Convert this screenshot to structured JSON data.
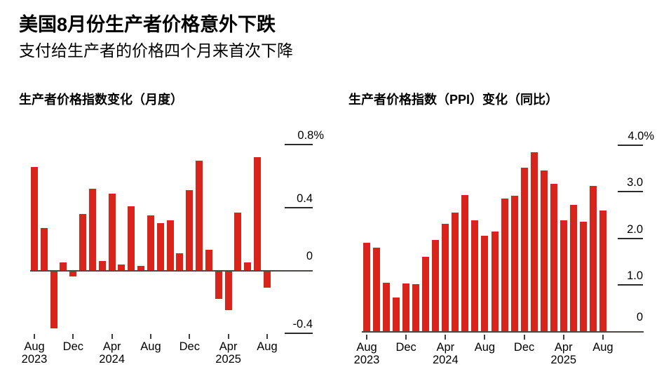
{
  "header": {
    "title": "美国8月份生产者价格意外下跌",
    "subtitle": "支付给生产者的价格四个月来首次下降"
  },
  "colors": {
    "bar_red": "#d9241c",
    "axis_line": "#4d4945",
    "x_tick": "#3f3f3f",
    "grid_tick": "#2b2b2b",
    "text": "#000000",
    "background": "#ffffff"
  },
  "chart_data": [
    {
      "type": "bar",
      "title": "生产者价格指数变化（月度）",
      "ylabel": "",
      "xlabel": "",
      "unit": "percent, month-over-month",
      "grid": false,
      "legend": "none",
      "bar_color": "#d9241c",
      "ylim": [
        -0.45,
        0.85
      ],
      "categories": [
        "Aug 2023",
        "Sep 2023",
        "Oct 2023",
        "Nov 2023",
        "Dec 2023",
        "Jan 2024",
        "Feb 2024",
        "Mar 2024",
        "Apr 2024",
        "May 2024",
        "Jun 2024",
        "Jul 2024",
        "Aug 2024",
        "Sep 2024",
        "Oct 2024",
        "Nov 2024",
        "Dec 2024",
        "Jan 2025",
        "Feb 2025",
        "Mar 2025",
        "Apr 2025",
        "May 2025",
        "Jun 2025",
        "Jul 2025",
        "Aug 2025"
      ],
      "values": [
        0.66,
        0.27,
        -0.37,
        0.05,
        -0.04,
        0.36,
        0.52,
        0.06,
        0.49,
        0.04,
        0.41,
        0.03,
        0.35,
        0.3,
        0.32,
        0.11,
        0.51,
        0.7,
        0.13,
        -0.18,
        -0.25,
        0.37,
        0.05,
        0.72,
        -0.11
      ],
      "yticks": [
        {
          "value": 0.8,
          "label": "0.8%"
        },
        {
          "value": 0.4,
          "label": "0.4"
        },
        {
          "value": 0,
          "label": "0"
        },
        {
          "value": -0.4,
          "label": "-0.4"
        }
      ],
      "xtick_months": [
        "Aug",
        "Dec",
        "Apr",
        "Aug",
        "Dec",
        "Apr",
        "Aug"
      ],
      "xtick_years": [
        {
          "index": 0,
          "label": "2023"
        },
        {
          "index": 2,
          "label": "2024"
        },
        {
          "index": 5,
          "label": "2025"
        }
      ]
    },
    {
      "type": "bar",
      "title": "生产者价格指数（PPI）变化（同比）",
      "ylabel": "",
      "xlabel": "",
      "unit": "percent, year-over-year",
      "grid": false,
      "legend": "none",
      "bar_color": "#d9241c",
      "ylim": [
        0,
        4.2
      ],
      "categories": [
        "Aug 2023",
        "Sep 2023",
        "Oct 2023",
        "Nov 2023",
        "Dec 2023",
        "Jan 2024",
        "Feb 2024",
        "Mar 2024",
        "Apr 2024",
        "May 2024",
        "Jun 2024",
        "Jul 2024",
        "Aug 2024",
        "Sep 2024",
        "Oct 2024",
        "Nov 2024",
        "Dec 2024",
        "Jan 2025",
        "Feb 2025",
        "Mar 2025",
        "Apr 2025",
        "May 2025",
        "Jun 2025",
        "Jul 2025",
        "Aug 2025"
      ],
      "values": [
        1.9,
        1.8,
        1.05,
        0.73,
        1.03,
        1.01,
        1.6,
        1.96,
        2.31,
        2.55,
        2.93,
        2.39,
        2.06,
        2.15,
        2.85,
        2.92,
        3.51,
        3.85,
        3.46,
        3.17,
        2.39,
        2.72,
        2.35,
        3.12,
        2.6
      ],
      "yticks": [
        {
          "value": 4.0,
          "label": "4.0%"
        },
        {
          "value": 3.0,
          "label": "3.0"
        },
        {
          "value": 2.0,
          "label": "2.0"
        },
        {
          "value": 1.0,
          "label": "1.0"
        },
        {
          "value": 0,
          "label": "0"
        }
      ],
      "xtick_months": [
        "Aug",
        "Dec",
        "Apr",
        "Aug",
        "Dec",
        "Apr",
        "Aug"
      ],
      "xtick_years": [
        {
          "index": 0,
          "label": "2023"
        },
        {
          "index": 2,
          "label": "2024"
        },
        {
          "index": 5,
          "label": "2025"
        }
      ]
    }
  ]
}
